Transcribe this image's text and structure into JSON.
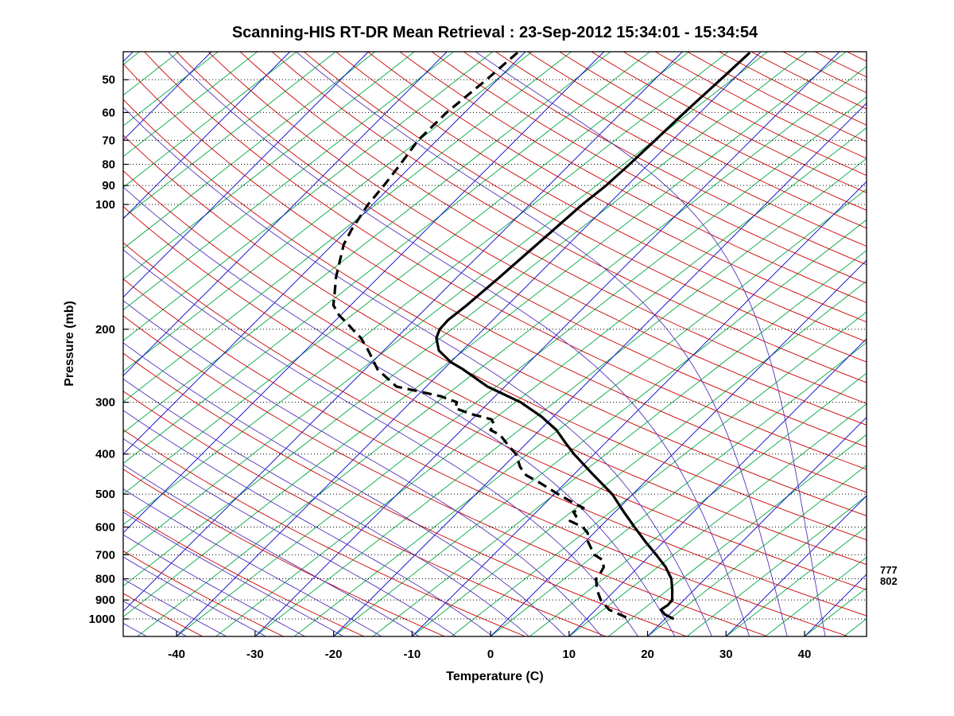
{
  "title": "Scanning-HIS RT-DR Mean Retrieval : 23-Sep-2012 15:34:01 - 15:34:54",
  "axes": {
    "x_label": "Temperature (C)",
    "y_label": "Pressure (mb)",
    "x_ticks": [
      -40,
      -30,
      -20,
      -10,
      0,
      10,
      20,
      30,
      40
    ],
    "y_ticks": [
      50,
      60,
      70,
      80,
      90,
      100,
      200,
      300,
      400,
      500,
      600,
      700,
      800,
      900,
      1000
    ]
  },
  "annotations": {
    "right_labels": [
      "777",
      "802"
    ]
  },
  "chart_data": {
    "type": "line",
    "diagram": "skew-t-log-p-sounding",
    "t_range": [
      -46.8,
      47.9
    ],
    "p_range": [
      42.8,
      1102
    ],
    "skew": 1.0,
    "grid": "dotted-horizontal-pressure-lines",
    "background": {
      "isotherms": {
        "color": "#0000cc",
        "t_start": -120,
        "t_end": 40,
        "step": 10,
        "skew": 1.0
      },
      "mixing_lines": {
        "color": "#00aa44",
        "t_start": -150,
        "t_end": 45,
        "step": 5,
        "skew": 1.28
      },
      "dry_adiabats": {
        "color": "#cc0000",
        "theta_start": 220,
        "theta_end": 620,
        "step": 10
      },
      "moist_adiabats": {
        "color": "#5533bb",
        "thetaw_start": -60,
        "thetaw_end": 40,
        "step": 5
      },
      "pressure_grid_color": "#000000"
    },
    "series": [
      {
        "name": "temperature",
        "style": "solid",
        "color": "#000000",
        "points": [
          [
            43,
            -41.3
          ],
          [
            50,
            -41.6
          ],
          [
            60,
            -42.0
          ],
          [
            70,
            -42.2
          ],
          [
            80,
            -42.4
          ],
          [
            90,
            -42.7
          ],
          [
            100,
            -43.3
          ],
          [
            125,
            -44.0
          ],
          [
            150,
            -44.6
          ],
          [
            175,
            -45.2
          ],
          [
            190,
            -45.7
          ],
          [
            200,
            -45.6
          ],
          [
            210,
            -44.9
          ],
          [
            225,
            -43.0
          ],
          [
            240,
            -40.0
          ],
          [
            250,
            -37.5
          ],
          [
            275,
            -32.2
          ],
          [
            300,
            -26.0
          ],
          [
            325,
            -21.5
          ],
          [
            350,
            -17.9
          ],
          [
            375,
            -15.2
          ],
          [
            400,
            -12.6
          ],
          [
            450,
            -7.4
          ],
          [
            500,
            -2.6
          ],
          [
            550,
            1.0
          ],
          [
            600,
            4.4
          ],
          [
            650,
            7.6
          ],
          [
            700,
            10.7
          ],
          [
            750,
            13.5
          ],
          [
            800,
            15.7
          ],
          [
            850,
            17.2
          ],
          [
            900,
            18.5
          ],
          [
            925,
            18.6
          ],
          [
            950,
            18.3
          ],
          [
            975,
            19.4
          ],
          [
            1000,
            21.1
          ]
        ]
      },
      {
        "name": "dew_point",
        "style": "dashed",
        "color": "#000000",
        "points": [
          [
            43,
            -70.9
          ],
          [
            50,
            -71.4
          ],
          [
            60,
            -72.3
          ],
          [
            70,
            -72.4
          ],
          [
            80,
            -71.6
          ],
          [
            90,
            -71.0
          ],
          [
            100,
            -70.6
          ],
          [
            115,
            -69.5
          ],
          [
            125,
            -68.6
          ],
          [
            150,
            -65.4
          ],
          [
            165,
            -63.4
          ],
          [
            175,
            -62.2
          ],
          [
            185,
            -60.2
          ],
          [
            195,
            -57.8
          ],
          [
            200,
            -56.7
          ],
          [
            210,
            -54.5
          ],
          [
            225,
            -52.0
          ],
          [
            250,
            -48.4
          ],
          [
            275,
            -43.8
          ],
          [
            290,
            -37.0
          ],
          [
            300,
            -34.1
          ],
          [
            310,
            -33.6
          ],
          [
            320,
            -30.9
          ],
          [
            330,
            -27.5
          ],
          [
            340,
            -26.5
          ],
          [
            350,
            -26.3
          ],
          [
            360,
            -24.4
          ],
          [
            380,
            -22.2
          ],
          [
            400,
            -20.0
          ],
          [
            430,
            -17.8
          ],
          [
            450,
            -16.0
          ],
          [
            470,
            -13.2
          ],
          [
            500,
            -9.5
          ],
          [
            520,
            -7.0
          ],
          [
            540,
            -4.5
          ],
          [
            552,
            -5.3
          ],
          [
            565,
            -4.4
          ],
          [
            580,
            -4.6
          ],
          [
            600,
            -2.2
          ],
          [
            620,
            -0.8
          ],
          [
            650,
            0.3
          ],
          [
            700,
            2.8
          ],
          [
            720,
            4.5
          ],
          [
            750,
            5.6
          ],
          [
            780,
            6.0
          ],
          [
            800,
            6.1
          ],
          [
            850,
            7.6
          ],
          [
            900,
            9.4
          ],
          [
            950,
            11.7
          ],
          [
            1000,
            15.5
          ]
        ]
      }
    ]
  }
}
